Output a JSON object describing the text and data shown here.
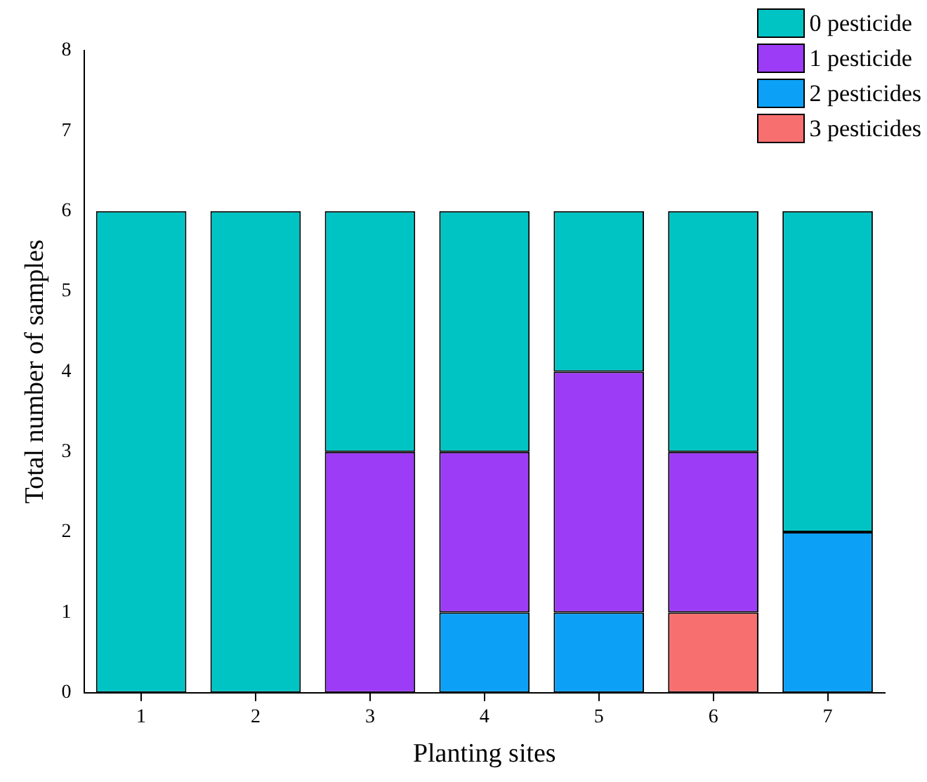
{
  "chart_data": {
    "type": "bar",
    "stacked": true,
    "xlabel": "Planting sites",
    "ylabel": "Total number of samples",
    "categories": [
      "1",
      "2",
      "3",
      "4",
      "5",
      "6",
      "7"
    ],
    "series": [
      {
        "name": "3 pesticides",
        "color": "#f76f6f",
        "values": [
          0,
          0,
          0,
          0,
          0,
          1,
          0
        ]
      },
      {
        "name": "2 pesticides",
        "color": "#0ca1f7",
        "values": [
          0,
          0,
          0,
          1,
          1,
          0,
          2
        ]
      },
      {
        "name": "1 pesticide",
        "color": "#9c3cf6",
        "values": [
          0,
          0,
          3,
          2,
          3,
          2,
          0
        ]
      },
      {
        "name": "0 pesticide",
        "color": "#00c4c4",
        "values": [
          6,
          6,
          3,
          3,
          2,
          3,
          4
        ]
      }
    ],
    "ylim": [
      0,
      8
    ],
    "yticks": [
      0,
      1,
      2,
      3,
      4,
      5,
      6,
      7,
      8
    ],
    "grid": false,
    "legend": "top right"
  }
}
